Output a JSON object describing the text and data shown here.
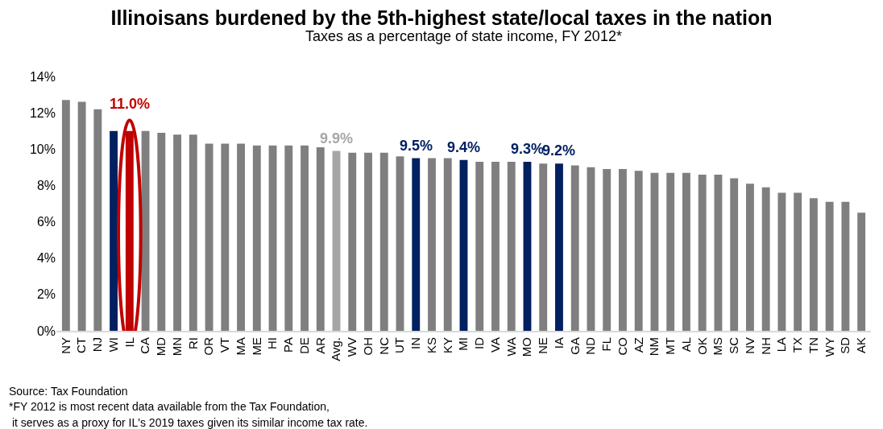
{
  "chart_data": {
    "type": "bar",
    "title": "Illinoisans burdened by the 5th-highest state/local taxes in the nation",
    "subtitle": "Taxes as a percentage of state income, FY 2012*",
    "categories": [
      "NY",
      "CT",
      "NJ",
      "WI",
      "IL",
      "CA",
      "MD",
      "MN",
      "RI",
      "OR",
      "VT",
      "MA",
      "ME",
      "HI",
      "PA",
      "DE",
      "AR",
      "Avg.",
      "WV",
      "OH",
      "NC",
      "UT",
      "IN",
      "KS",
      "KY",
      "MI",
      "ID",
      "VA",
      "WA",
      "MO",
      "NE",
      "IA",
      "GA",
      "ND",
      "FL",
      "CO",
      "AZ",
      "NM",
      "MT",
      "AL",
      "OK",
      "MS",
      "SC",
      "NV",
      "NH",
      "LA",
      "TX",
      "TN",
      "WY",
      "SD",
      "AK"
    ],
    "values": [
      12.7,
      12.6,
      12.2,
      11.0,
      11.0,
      11.0,
      10.9,
      10.8,
      10.8,
      10.3,
      10.3,
      10.3,
      10.2,
      10.2,
      10.2,
      10.2,
      10.1,
      9.9,
      9.8,
      9.8,
      9.8,
      9.6,
      9.5,
      9.5,
      9.5,
      9.4,
      9.3,
      9.3,
      9.3,
      9.3,
      9.2,
      9.2,
      9.1,
      9.0,
      8.9,
      8.9,
      8.8,
      8.7,
      8.7,
      8.7,
      8.6,
      8.6,
      8.4,
      8.1,
      7.9,
      7.6,
      7.6,
      7.3,
      7.1,
      7.1,
      6.5
    ],
    "colors": [
      "#7f7f7f",
      "#7f7f7f",
      "#7f7f7f",
      "#002060",
      "#c00000",
      "#7f7f7f",
      "#7f7f7f",
      "#7f7f7f",
      "#7f7f7f",
      "#7f7f7f",
      "#7f7f7f",
      "#7f7f7f",
      "#7f7f7f",
      "#7f7f7f",
      "#7f7f7f",
      "#7f7f7f",
      "#7f7f7f",
      "#a6a6a6",
      "#7f7f7f",
      "#7f7f7f",
      "#7f7f7f",
      "#7f7f7f",
      "#002060",
      "#7f7f7f",
      "#7f7f7f",
      "#002060",
      "#7f7f7f",
      "#7f7f7f",
      "#7f7f7f",
      "#002060",
      "#7f7f7f",
      "#002060",
      "#7f7f7f",
      "#7f7f7f",
      "#7f7f7f",
      "#7f7f7f",
      "#7f7f7f",
      "#7f7f7f",
      "#7f7f7f",
      "#7f7f7f",
      "#7f7f7f",
      "#7f7f7f",
      "#7f7f7f",
      "#7f7f7f",
      "#7f7f7f",
      "#7f7f7f",
      "#7f7f7f",
      "#7f7f7f",
      "#7f7f7f",
      "#7f7f7f",
      "#7f7f7f"
    ],
    "value_labels": [
      null,
      null,
      null,
      null,
      "11.0%",
      null,
      null,
      null,
      null,
      null,
      null,
      null,
      null,
      null,
      null,
      null,
      null,
      "9.9%",
      null,
      null,
      null,
      null,
      "9.5%",
      null,
      null,
      "9.4%",
      null,
      null,
      null,
      "9.3%",
      null,
      "9.2%",
      null,
      null,
      null,
      null,
      null,
      null,
      null,
      null,
      null,
      null,
      null,
      null,
      null,
      null,
      null,
      null,
      null,
      null,
      null
    ],
    "ylim": [
      0,
      14
    ],
    "yticks": [
      {
        "value": 0,
        "label": "0%"
      },
      {
        "value": 2,
        "label": "2%"
      },
      {
        "value": 4,
        "label": "4%"
      },
      {
        "value": 6,
        "label": "6%"
      },
      {
        "value": 8,
        "label": "8%"
      },
      {
        "value": 10,
        "label": "10%"
      },
      {
        "value": 12,
        "label": "12%"
      },
      {
        "value": 14,
        "label": "14%"
      }
    ],
    "grid": false,
    "legend": false,
    "annotations": [
      "Source: Tax Foundation",
      "*FY 2012 is most recent data available from the Tax Foundation,",
      " it serves as a proxy for IL's 2019 taxes given its similar income tax rate."
    ]
  }
}
